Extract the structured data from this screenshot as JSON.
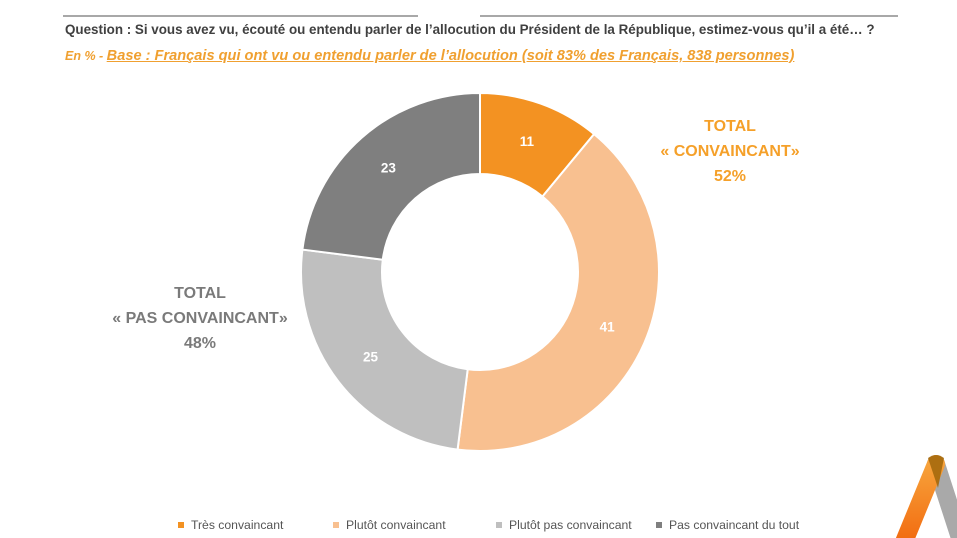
{
  "header": {
    "question": "Question : Si vous avez vu, écouté ou entendu parler de l’allocution du Président de la République, estimez-vous qu’il a été… ?",
    "base_prefix": "En % - ",
    "base": "Base : Français qui ont vu ou entendu parler de l’allocution (soit 83% des Français, 838 personnes)"
  },
  "totals": {
    "convaincant": {
      "line1": "TOTAL",
      "line2": "« CONVAINCANT»",
      "line3": "52%",
      "color": "#f5a029"
    },
    "pas_convaincant": {
      "line1": "TOTAL",
      "line2": "« PAS CONVAINCANT»",
      "line3": "48%",
      "color": "#7a7a7a"
    }
  },
  "chart_data": {
    "type": "pie",
    "subtype": "donut",
    "title": "Question : Si vous avez vu, écouté ou entendu parler de l’allocution du Président de la République, estimez-vous qu’il a été… ?",
    "unit": "%",
    "start_angle": "12 o'clock, clockwise",
    "categories": [
      "Très convaincant",
      "Plutôt convaincant",
      "Plutôt pas convaincant",
      "Pas convaincant du tout"
    ],
    "values": [
      11,
      41,
      25,
      23
    ],
    "labels": [
      "11",
      "41",
      "25",
      "23"
    ],
    "colors": [
      "#f39222",
      "#f8c090",
      "#bfbfbf",
      "#7f7f7f"
    ],
    "legend_position": "bottom",
    "annotations": [
      {
        "text": "TOTAL « CONVAINCANT» 52%",
        "position": "top-right"
      },
      {
        "text": "TOTAL « PAS CONVAINCANT» 48%",
        "position": "left"
      }
    ]
  },
  "logo": {
    "icon": "brand-logo-icon"
  }
}
